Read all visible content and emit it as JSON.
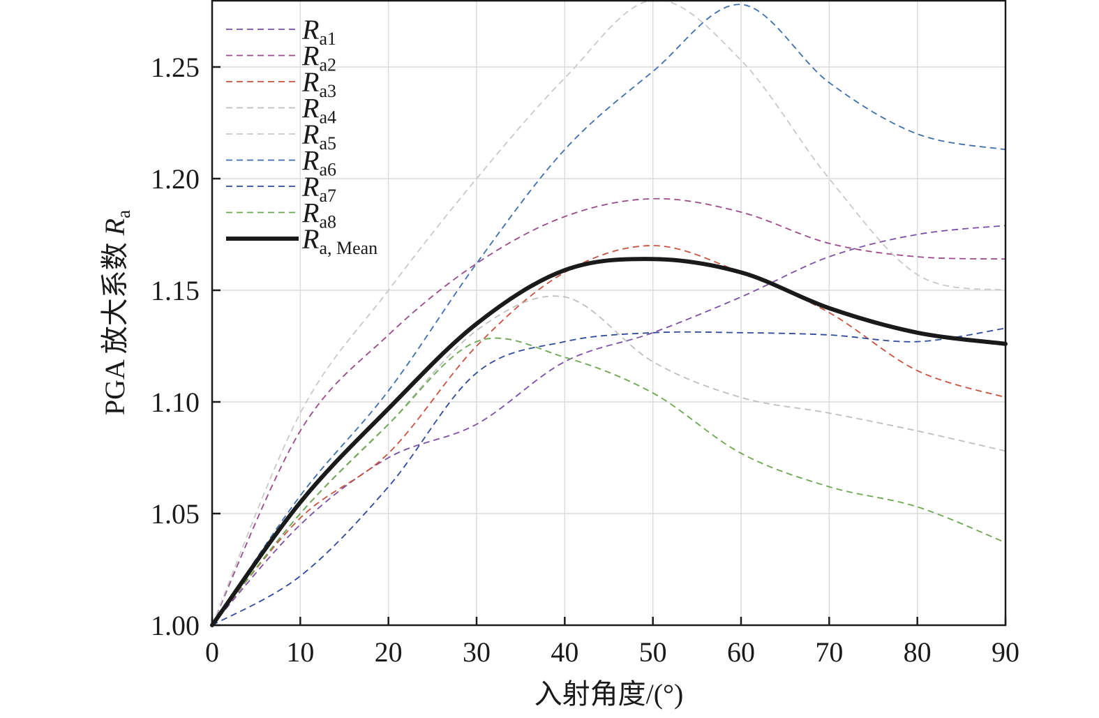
{
  "chart_data": {
    "type": "line",
    "xlabel": "入射角度/(°)",
    "ylabel": "PGA 放大系数 ",
    "ylabel_symbol": "R",
    "ylabel_subscript": "a",
    "xlim": [
      0,
      90
    ],
    "ylim": [
      1.0,
      1.28
    ],
    "xticks": [
      "0",
      "10",
      "20",
      "30",
      "40",
      "50",
      "60",
      "70",
      "80",
      "90"
    ],
    "yticks": [
      "1.00",
      "1.05",
      "1.10",
      "1.15",
      "1.20",
      "1.25"
    ],
    "ytick_values": [
      1.0,
      1.05,
      1.1,
      1.15,
      1.2,
      1.25
    ],
    "grid": true,
    "legend_position": "top-left",
    "x": [
      0,
      10,
      20,
      30,
      40,
      50,
      60,
      70,
      80,
      90
    ],
    "series": [
      {
        "name": "a1",
        "symbol": "R",
        "color": "#7b4fa6",
        "style": "dashed",
        "values": [
          1.0,
          1.045,
          1.075,
          1.09,
          1.118,
          1.131,
          1.147,
          1.165,
          1.175,
          1.179
        ]
      },
      {
        "name": "a2",
        "symbol": "R",
        "color": "#9b4a8c",
        "style": "dashed",
        "values": [
          1.0,
          1.087,
          1.13,
          1.162,
          1.183,
          1.191,
          1.185,
          1.171,
          1.165,
          1.164
        ]
      },
      {
        "name": "a3",
        "symbol": "R",
        "color": "#c8513e",
        "style": "dashed",
        "values": [
          1.0,
          1.048,
          1.077,
          1.125,
          1.158,
          1.17,
          1.158,
          1.14,
          1.114,
          1.102
        ]
      },
      {
        "name": "a4",
        "symbol": "R",
        "color": "#bfbfbf",
        "style": "dashed",
        "values": [
          1.0,
          1.05,
          1.09,
          1.132,
          1.147,
          1.118,
          1.102,
          1.095,
          1.087,
          1.078
        ]
      },
      {
        "name": "a5",
        "symbol": "R",
        "color": "#c9c9c9",
        "style": "dashed",
        "values": [
          1.0,
          1.095,
          1.15,
          1.2,
          1.245,
          1.28,
          1.253,
          1.2,
          1.157,
          1.15
        ]
      },
      {
        "name": "a6",
        "symbol": "R",
        "color": "#3c6fae",
        "style": "dashed",
        "values": [
          1.0,
          1.058,
          1.105,
          1.162,
          1.213,
          1.248,
          1.278,
          1.243,
          1.22,
          1.213
        ]
      },
      {
        "name": "a7",
        "symbol": "R",
        "color": "#2e4a9a",
        "style": "dashed",
        "values": [
          1.0,
          1.022,
          1.062,
          1.113,
          1.127,
          1.131,
          1.131,
          1.13,
          1.127,
          1.133
        ]
      },
      {
        "name": "a8",
        "symbol": "R",
        "color": "#6aa84f",
        "style": "dashed",
        "values": [
          1.0,
          1.05,
          1.09,
          1.127,
          1.12,
          1.104,
          1.077,
          1.062,
          1.053,
          1.037
        ]
      },
      {
        "name": "a, Mean",
        "symbol": "R",
        "color": "#1a1a1a",
        "style": "solid",
        "values": [
          1.0,
          1.055,
          1.097,
          1.135,
          1.159,
          1.164,
          1.158,
          1.142,
          1.131,
          1.126
        ]
      }
    ]
  }
}
